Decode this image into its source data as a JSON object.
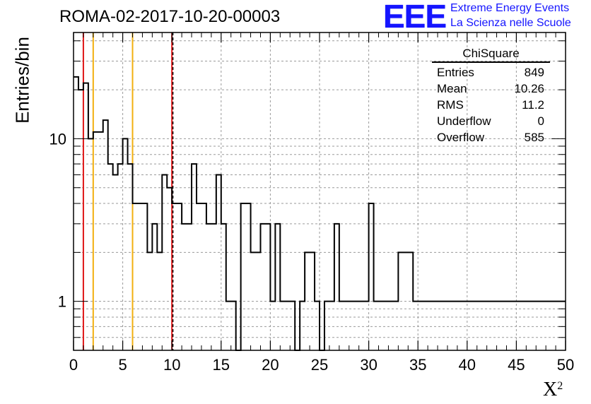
{
  "header": {
    "run_title": "ROMA-02-2017-10-20-00003",
    "logo_text": "EEE",
    "logo_line1": "Extreme Energy Events",
    "logo_line2": "La Scienza nelle Scuole"
  },
  "stats_box": {
    "title": "ChiSquare",
    "rows": [
      {
        "label": "Entries",
        "value": "849"
      },
      {
        "label": "Mean",
        "value": "10.26"
      },
      {
        "label": "RMS",
        "value": "11.2"
      },
      {
        "label": "Underflow",
        "value": "0"
      },
      {
        "label": "Overflow",
        "value": "585"
      }
    ]
  },
  "chart_data": {
    "type": "histogram",
    "xlabel": "X",
    "xlabel_sup": "2",
    "ylabel": "Entries/bin",
    "xlim": [
      0,
      50
    ],
    "ylim": [
      0.5,
      45
    ],
    "log_y": true,
    "grid": true,
    "bin_width": 0.5,
    "x_ticks": [
      0,
      5,
      10,
      15,
      20,
      25,
      30,
      35,
      40,
      45,
      50
    ],
    "y_ticks": [
      1,
      10
    ],
    "counts": [
      24,
      20,
      22,
      10,
      11,
      11,
      13,
      7,
      6,
      7,
      10,
      7,
      4,
      4,
      4,
      2,
      3,
      2,
      6,
      5,
      4,
      4,
      3,
      3,
      7,
      4,
      4,
      3,
      3,
      6,
      3,
      1,
      1,
      0,
      4,
      4,
      2,
      2,
      3,
      3,
      1,
      3,
      1,
      1,
      1,
      0,
      1,
      2,
      2,
      1,
      0,
      1,
      1,
      3,
      1,
      1,
      1,
      1,
      1,
      1,
      4,
      1,
      1,
      1,
      1,
      1,
      2,
      2,
      2,
      1,
      1,
      1,
      1,
      1,
      1,
      1,
      1,
      1,
      1,
      1,
      1,
      1,
      1,
      1,
      1,
      1,
      1,
      1,
      1,
      1,
      1,
      1,
      1,
      1,
      1,
      1,
      1,
      1,
      1,
      1
    ],
    "reference_lines": [
      {
        "x": 1,
        "color": "#e01515"
      },
      {
        "x": 2,
        "color": "#f2b010"
      },
      {
        "x": 6,
        "color": "#f2b010"
      },
      {
        "x": 10,
        "color": "#e01515"
      }
    ],
    "dashed_line_x": 10.1,
    "line_color": "#000000"
  }
}
